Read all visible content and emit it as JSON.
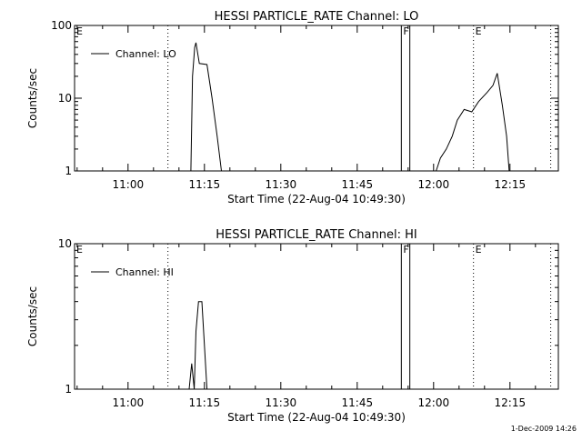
{
  "chart_data": [
    {
      "type": "line",
      "title": "HESSI PARTICLE_RATE Channel: LO",
      "xlabel": "Start Time (22-Aug-04 10:49:30)",
      "ylabel": "Counts/sec",
      "yscale": "log",
      "xlim": [
        "10:49:30",
        "12:24:30"
      ],
      "ylim": [
        1,
        100
      ],
      "x_ticks": [
        "11:00",
        "11:15",
        "11:30",
        "11:45",
        "12:00",
        "12:15"
      ],
      "y_ticks": [
        "1",
        "10",
        "100"
      ],
      "legend_position": "top-left",
      "grid": false,
      "series": [
        {
          "name": "Channel: LO",
          "points": [
            [
              "11:12:20",
              1
            ],
            [
              "11:12:40",
              20
            ],
            [
              "11:13:05",
              50
            ],
            [
              "11:13:20",
              58
            ],
            [
              "11:14:00",
              30
            ],
            [
              "11:15:30",
              29
            ],
            [
              "11:16:30",
              10
            ],
            [
              "11:17:30",
              3
            ],
            [
              "11:18:20",
              1
            ]
          ]
        },
        {
          "name": "Channel: LO",
          "points": [
            [
              "12:00:30",
              1
            ],
            [
              "12:01:20",
              1.5
            ],
            [
              "12:02:30",
              2
            ],
            [
              "12:03:40",
              3
            ],
            [
              "12:04:40",
              5
            ],
            [
              "12:06:00",
              7
            ],
            [
              "12:07:30",
              6.5
            ],
            [
              "12:08:50",
              9
            ],
            [
              "12:10:30",
              12
            ],
            [
              "12:11:40",
              15
            ],
            [
              "12:12:30",
              22
            ],
            [
              "12:13:30",
              8
            ],
            [
              "12:14:20",
              3
            ],
            [
              "12:14:50",
              1
            ]
          ]
        }
      ],
      "annotations": [
        {
          "label": "E",
          "time": "10:49:30",
          "style": "dotted"
        },
        {
          "label": "",
          "time": "11:07:50",
          "style": "dotted"
        },
        {
          "label": "F",
          "time": "11:53:40",
          "style": "solid"
        },
        {
          "label": "",
          "time": "11:55:20",
          "style": "solid"
        },
        {
          "label": "E",
          "time": "12:07:50",
          "style": "dotted"
        },
        {
          "label": "",
          "time": "12:23:00",
          "style": "dotted"
        }
      ]
    },
    {
      "type": "line",
      "title": "HESSI PARTICLE_RATE Channel: HI",
      "xlabel": "Start Time (22-Aug-04 10:49:30)",
      "ylabel": "Counts/sec",
      "yscale": "log",
      "xlim": [
        "10:49:30",
        "12:24:30"
      ],
      "ylim": [
        1,
        10
      ],
      "x_ticks": [
        "11:00",
        "11:15",
        "11:30",
        "11:45",
        "12:00",
        "12:15"
      ],
      "y_ticks": [
        "1",
        "10"
      ],
      "legend_position": "top-left",
      "grid": false,
      "series": [
        {
          "name": "Channel: HI",
          "points": [
            [
              "11:12:00",
              1
            ],
            [
              "11:12:30",
              1.5
            ],
            [
              "11:13:00",
              1
            ],
            [
              "11:13:20",
              2.5
            ],
            [
              "11:13:50",
              4
            ],
            [
              "11:14:30",
              4
            ],
            [
              "11:15:00",
              2
            ],
            [
              "11:15:30",
              1
            ]
          ]
        }
      ],
      "annotations": [
        {
          "label": "E",
          "time": "10:49:30",
          "style": "dotted"
        },
        {
          "label": "",
          "time": "11:07:50",
          "style": "dotted"
        },
        {
          "label": "F",
          "time": "11:53:40",
          "style": "solid"
        },
        {
          "label": "",
          "time": "11:55:20",
          "style": "solid"
        },
        {
          "label": "E",
          "time": "12:07:50",
          "style": "dotted"
        },
        {
          "label": "",
          "time": "12:23:00",
          "style": "dotted"
        }
      ]
    }
  ],
  "footer": {
    "timestamp": "1-Dec-2009 14:26"
  }
}
